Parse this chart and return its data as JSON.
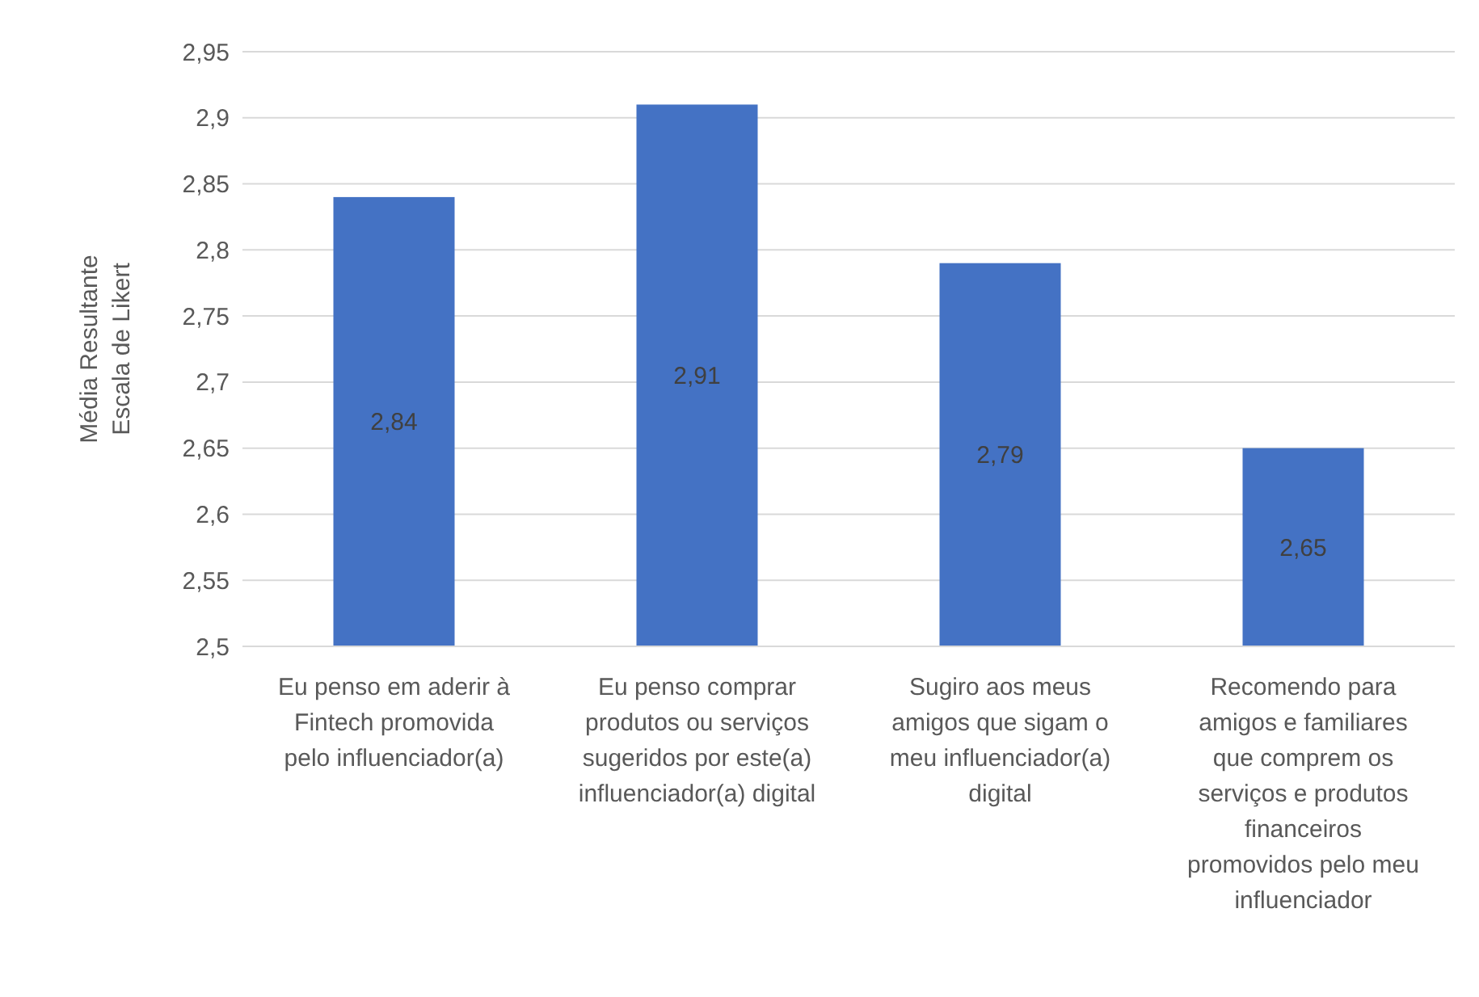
{
  "chart_data": {
    "type": "bar",
    "ylabel": "Média Resultante\nEscala de Likert",
    "categories": [
      "Eu penso em aderir à Fintech promovida pelo influenciador(a)",
      "Eu penso comprar produtos ou serviços sugeridos por este(a) influenciador(a) digital",
      "Sugiro aos meus amigos que sigam o meu influenciador(a) digital",
      "Recomendo para amigos e familiares que comprem os serviços e produtos financeiros promovidos pelo meu influenciador"
    ],
    "values": [
      2.84,
      2.91,
      2.79,
      2.65
    ],
    "value_labels": [
      "2,84",
      "2,91",
      "2,79",
      "2,65"
    ],
    "color": "#4472c4",
    "ylim": [
      2.5,
      2.95
    ],
    "yticks": [
      {
        "value": 2.5,
        "label": "2,5"
      },
      {
        "value": 2.55,
        "label": "2,55"
      },
      {
        "value": 2.6,
        "label": "2,6"
      },
      {
        "value": 2.65,
        "label": "2,65"
      },
      {
        "value": 2.7,
        "label": "2,7"
      },
      {
        "value": 2.75,
        "label": "2,75"
      },
      {
        "value": 2.8,
        "label": "2,8"
      },
      {
        "value": 2.85,
        "label": "2,85"
      },
      {
        "value": 2.9,
        "label": "2,9"
      },
      {
        "value": 2.95,
        "label": "2,95"
      }
    ],
    "grid": "y"
  }
}
